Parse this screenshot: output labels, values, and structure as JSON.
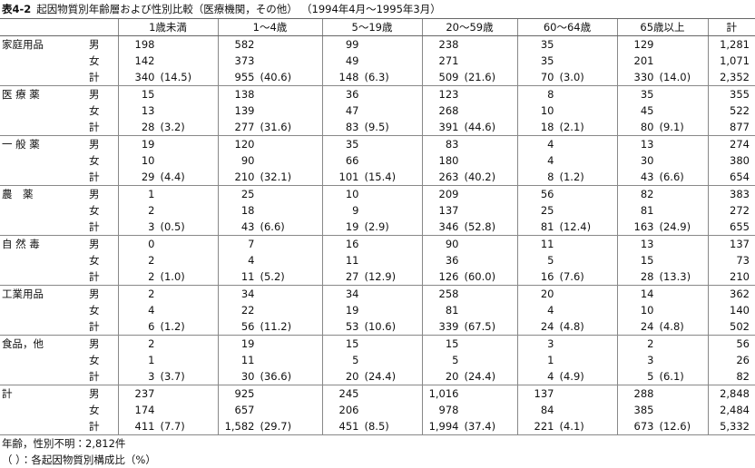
{
  "header": {
    "table_no": "表4-2",
    "title": "起因物質別年齢層および性別比較（医療機関，その他）",
    "period": "（1994年4月～1995年3月）"
  },
  "table": {
    "columns": [
      "1歳未満",
      "1～4歳",
      "5～19歳",
      "20～59歳",
      "60～64歳",
      "65歳以上",
      "計"
    ],
    "groups": [
      {
        "name": "家庭用品",
        "rows": [
          {
            "sex": "男",
            "cells": [
              "198",
              "582",
              "99",
              "238",
              "35",
              "129",
              "1,281"
            ]
          },
          {
            "sex": "女",
            "cells": [
              "142",
              "373",
              "49",
              "271",
              "35",
              "201",
              "1,071"
            ]
          },
          {
            "sex": "計",
            "cells": [
              "340",
              "955",
              "148",
              "509",
              "70",
              "330",
              "2,352"
            ],
            "shares": [
              "(14.5)",
              "(40.6)",
              "(6.3)",
              "(21.6)",
              "(3.0)",
              "(14.0)"
            ]
          }
        ]
      },
      {
        "name": "医 療 薬",
        "rows": [
          {
            "sex": "男",
            "cells": [
              "15",
              "138",
              "36",
              "123",
              "8",
              "35",
              "355"
            ]
          },
          {
            "sex": "女",
            "cells": [
              "13",
              "139",
              "47",
              "268",
              "10",
              "45",
              "522"
            ]
          },
          {
            "sex": "計",
            "cells": [
              "28",
              "277",
              "83",
              "391",
              "18",
              "80",
              "877"
            ],
            "shares": [
              "(3.2)",
              "(31.6)",
              "(9.5)",
              "(44.6)",
              "(2.1)",
              "(9.1)"
            ]
          }
        ]
      },
      {
        "name": "一 般 薬",
        "rows": [
          {
            "sex": "男",
            "cells": [
              "19",
              "120",
              "35",
              "83",
              "4",
              "13",
              "274"
            ]
          },
          {
            "sex": "女",
            "cells": [
              "10",
              "90",
              "66",
              "180",
              "4",
              "30",
              "380"
            ]
          },
          {
            "sex": "計",
            "cells": [
              "29",
              "210",
              "101",
              "263",
              "8",
              "43",
              "654"
            ],
            "shares": [
              "(4.4)",
              "(32.1)",
              "(15.4)",
              "(40.2)",
              "(1.2)",
              "(6.6)"
            ]
          }
        ]
      },
      {
        "name": "農　薬",
        "rows": [
          {
            "sex": "男",
            "cells": [
              "1",
              "25",
              "10",
              "209",
              "56",
              "82",
              "383"
            ]
          },
          {
            "sex": "女",
            "cells": [
              "2",
              "18",
              "9",
              "137",
              "25",
              "81",
              "272"
            ]
          },
          {
            "sex": "計",
            "cells": [
              "3",
              "43",
              "19",
              "346",
              "81",
              "163",
              "655"
            ],
            "shares": [
              "(0.5)",
              "(6.6)",
              "(2.9)",
              "(52.8)",
              "(12.4)",
              "(24.9)"
            ]
          }
        ]
      },
      {
        "name": "自 然 毒",
        "rows": [
          {
            "sex": "男",
            "cells": [
              "0",
              "7",
              "16",
              "90",
              "11",
              "13",
              "137"
            ]
          },
          {
            "sex": "女",
            "cells": [
              "2",
              "4",
              "11",
              "36",
              "5",
              "15",
              "73"
            ]
          },
          {
            "sex": "計",
            "cells": [
              "2",
              "11",
              "27",
              "126",
              "16",
              "28",
              "210"
            ],
            "shares": [
              "(1.0)",
              "(5.2)",
              "(12.9)",
              "(60.0)",
              "(7.6)",
              "(13.3)"
            ]
          }
        ]
      },
      {
        "name": "工業用品",
        "rows": [
          {
            "sex": "男",
            "cells": [
              "2",
              "34",
              "34",
              "258",
              "20",
              "14",
              "362"
            ]
          },
          {
            "sex": "女",
            "cells": [
              "4",
              "22",
              "19",
              "81",
              "4",
              "10",
              "140"
            ]
          },
          {
            "sex": "計",
            "cells": [
              "6",
              "56",
              "53",
              "339",
              "24",
              "24",
              "502"
            ],
            "shares": [
              "(1.2)",
              "(11.2)",
              "(10.6)",
              "(67.5)",
              "(4.8)",
              "(4.8)"
            ]
          }
        ]
      },
      {
        "name": "食品，他",
        "rows": [
          {
            "sex": "男",
            "cells": [
              "2",
              "19",
              "15",
              "15",
              "3",
              "2",
              "56"
            ]
          },
          {
            "sex": "女",
            "cells": [
              "1",
              "11",
              "5",
              "5",
              "1",
              "3",
              "26"
            ]
          },
          {
            "sex": "計",
            "cells": [
              "3",
              "30",
              "20",
              "20",
              "4",
              "5",
              "82"
            ],
            "shares": [
              "(3.7)",
              "(36.6)",
              "(24.4)",
              "(24.4)",
              "(4.9)",
              "(6.1)"
            ]
          }
        ]
      },
      {
        "name": "計",
        "rows": [
          {
            "sex": "男",
            "cells": [
              "237",
              "925",
              "245",
              "1,016",
              "137",
              "288",
              "2,848"
            ]
          },
          {
            "sex": "女",
            "cells": [
              "174",
              "657",
              "206",
              "978",
              "84",
              "385",
              "2,484"
            ]
          },
          {
            "sex": "計",
            "cells": [
              "411",
              "1,582",
              "451",
              "1,994",
              "221",
              "673",
              "5,332"
            ],
            "shares": [
              "(7.7)",
              "(29.7)",
              "(8.5)",
              "(37.4)",
              "(4.1)",
              "(12.6)"
            ]
          }
        ]
      }
    ]
  },
  "notes": [
    "年齢，性別不明：2,812件",
    "（ ）：各起因物質別構成比（%）"
  ]
}
